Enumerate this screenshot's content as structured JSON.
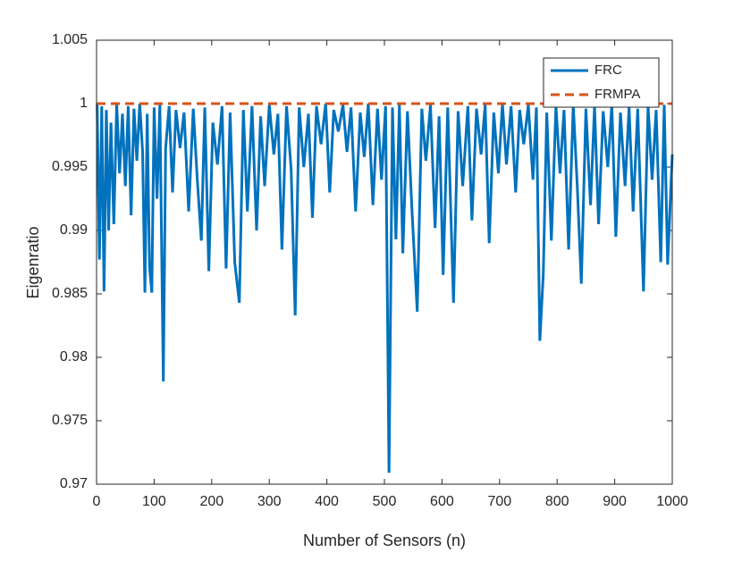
{
  "chart_data": {
    "type": "line",
    "xlabel": "Number of Sensors (n)",
    "ylabel": "Eigenratio",
    "xlim": [
      0,
      1000
    ],
    "xticks": [
      0,
      100,
      200,
      300,
      400,
      500,
      600,
      700,
      800,
      900,
      1000
    ],
    "ylim": [
      0.97,
      1.005
    ],
    "yticks": [
      0.97,
      0.975,
      0.98,
      0.985,
      0.99,
      0.995,
      1,
      1.005
    ],
    "legend": "northeast",
    "box": true,
    "series": [
      {
        "name": "FRC",
        "color": "#0072BD",
        "style": "solid",
        "x": [
          1,
          5,
          9,
          13,
          17,
          21,
          25,
          30,
          35,
          40,
          45,
          50,
          55,
          60,
          65,
          70,
          75,
          80,
          84,
          88,
          92,
          96,
          100,
          105,
          110,
          116,
          120,
          126,
          132,
          138,
          145,
          152,
          160,
          168,
          175,
          182,
          188,
          195,
          202,
          210,
          218,
          225,
          232,
          240,
          248,
          255,
          262,
          270,
          278,
          285,
          292,
          300,
          308,
          315,
          322,
          330,
          338,
          345,
          352,
          360,
          368,
          375,
          382,
          390,
          398,
          405,
          412,
          420,
          428,
          435,
          442,
          450,
          458,
          465,
          472,
          480,
          488,
          495,
          502,
          508,
          514,
          520,
          526,
          532,
          540,
          548,
          557,
          565,
          572,
          580,
          588,
          595,
          602,
          610,
          620,
          628,
          636,
          645,
          652,
          660,
          668,
          675,
          682,
          690,
          698,
          705,
          712,
          720,
          728,
          735,
          742,
          750,
          758,
          764,
          770,
          776,
          782,
          790,
          798,
          805,
          812,
          820,
          828,
          835,
          842,
          850,
          858,
          865,
          872,
          880,
          888,
          895,
          902,
          910,
          918,
          925,
          932,
          940,
          950,
          958,
          965,
          972,
          980,
          986,
          992,
          1000
        ],
        "values": [
          1.0,
          0.9877,
          0.9998,
          0.9852,
          0.9995,
          0.99,
          0.9985,
          0.9905,
          1.0,
          0.9945,
          0.9992,
          0.9935,
          0.9998,
          0.9912,
          0.9996,
          0.9955,
          1.0,
          0.9962,
          0.9851,
          0.9992,
          0.9872,
          0.9851,
          0.9997,
          0.9925,
          0.9999,
          0.9781,
          0.9965,
          0.9998,
          0.993,
          0.9995,
          0.9965,
          0.9993,
          0.9915,
          0.9996,
          0.994,
          0.9892,
          0.9997,
          0.9868,
          0.9985,
          0.9952,
          0.9998,
          0.987,
          0.9993,
          0.9875,
          0.9843,
          0.9995,
          0.9915,
          0.9998,
          0.99,
          0.999,
          0.9935,
          0.9999,
          0.996,
          0.9992,
          0.9885,
          0.9998,
          0.9948,
          0.9833,
          0.9997,
          0.995,
          0.9992,
          0.991,
          0.9998,
          0.9968,
          1.0,
          0.993,
          0.9995,
          0.9978,
          0.9999,
          0.9962,
          0.9997,
          0.9915,
          0.9993,
          0.9958,
          1.0,
          0.992,
          0.9996,
          0.994,
          0.9998,
          0.9709,
          0.9997,
          0.9893,
          0.9999,
          0.9882,
          0.9994,
          0.9915,
          0.9836,
          0.9996,
          0.9955,
          0.9999,
          0.9902,
          0.999,
          0.9865,
          0.9997,
          0.9843,
          0.9994,
          0.9935,
          0.9998,
          0.9908,
          0.9996,
          0.996,
          0.9999,
          0.989,
          0.9993,
          0.9945,
          1.0,
          0.9952,
          0.9998,
          0.993,
          0.9995,
          0.9968,
          0.9999,
          0.994,
          0.9997,
          0.9813,
          0.9866,
          0.9993,
          0.9892,
          0.9998,
          0.9945,
          0.9995,
          0.9885,
          0.9999,
          0.9935,
          0.9858,
          0.9996,
          0.992,
          0.9998,
          0.9905,
          0.9994,
          0.995,
          0.9999,
          0.9895,
          0.9993,
          0.9935,
          0.9997,
          0.9915,
          0.9996,
          0.9852,
          0.9998,
          0.994,
          0.9995,
          0.9875,
          0.9999,
          0.9873,
          0.996
        ]
      },
      {
        "name": "FRMPA",
        "color": "#D95319",
        "style": "dashed",
        "x": [
          0,
          1000
        ],
        "values": [
          1,
          1
        ]
      }
    ]
  }
}
